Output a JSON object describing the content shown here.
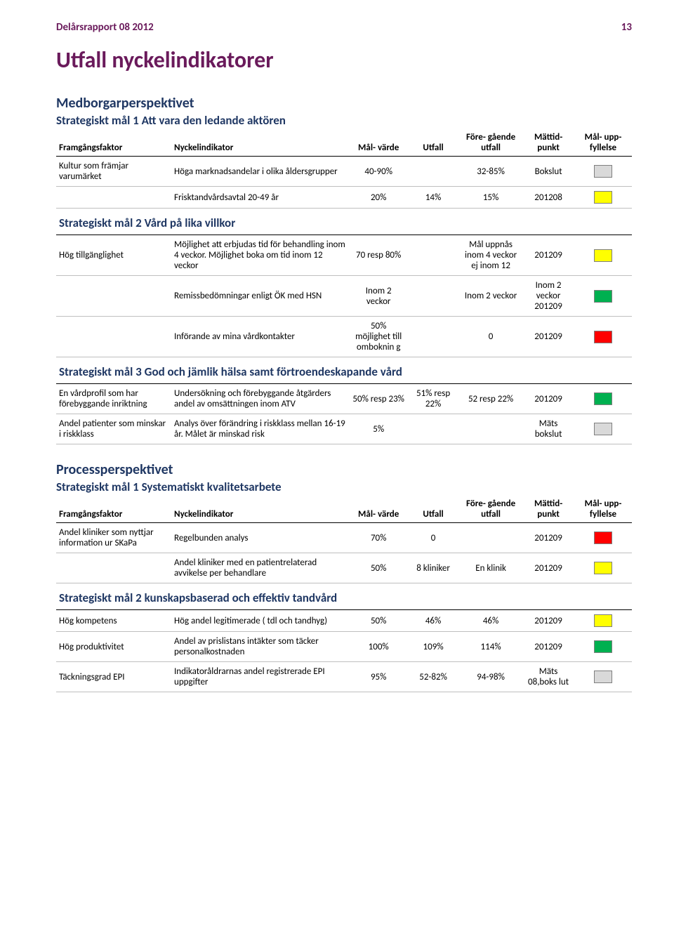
{
  "colors": {
    "gray": "#d9d9d9",
    "yellow": "#ffff00",
    "green": "#00b050",
    "red": "#ff0000"
  },
  "header": {
    "title_left": "Delårsrapport 08 2012",
    "page_number": "13",
    "doc_title": "Utfall nyckelindikatorer"
  },
  "columns": {
    "framgangsfaktor": "Framgångsfaktor",
    "nyckelindikator": "Nyckelindikator",
    "malvarde": "Mål-\nvärde",
    "utfall": "Utfall",
    "foregaende": "Före-\ngående\nutfall",
    "mattidpunkt": "Mättid-\npunkt",
    "maluppfyllelse": "Mål-\nupp-\nfyllelse"
  },
  "table1": {
    "section_title": "Medborgarperspektivet",
    "goal1_title": "Strategiskt mål 1 Att vara den ledande aktören",
    "rows1": [
      {
        "ff": "Kultur som främjar varumärket",
        "ind": "Höga marknadsandelar i olika åldersgrupper",
        "mv": "40-90%",
        "utf": "",
        "prev": "32-85%",
        "mt": "Bokslut",
        "status": "gray"
      },
      {
        "ff": "",
        "ind": "Frisktandvårdsavtal 20-49 år",
        "mv": "20%",
        "utf": "14%",
        "prev": "15%",
        "mt": "201208",
        "status": "yellow"
      }
    ],
    "goal2_title": "Strategiskt mål 2 Vård på lika villkor",
    "rows2": [
      {
        "ff": "Hög tillgänglighet",
        "ind": "Möjlighet att erbjudas tid för behandling inom 4 veckor. Möjlighet boka om tid inom 12 veckor",
        "mv": "70 resp 80%",
        "utf": "",
        "prev": "Mål uppnås inom 4 veckor  ej inom 12",
        "mt": "201209",
        "status": "yellow"
      },
      {
        "ff": "",
        "ind": "Remissbedömningar enligt ÖK med HSN",
        "mv": "Inom 2 veckor",
        "utf": "",
        "prev": "Inom 2 veckor",
        "mt": "Inom 2 veckor\n201209",
        "status": "green"
      },
      {
        "ff": "",
        "ind": "Införande av mina vårdkontakter",
        "mv": "50% möjlighet till omboknin g",
        "utf": "",
        "prev": "0",
        "mt": "201209",
        "status": "red"
      }
    ],
    "goal3_title": "Strategiskt mål 3 God och jämlik hälsa samt förtroendeskapande vård",
    "rows3": [
      {
        "ff": "En vårdprofil som har förebyggande inriktning",
        "ind": "Undersökning och förebyggande åtgärders  andel av omsättningen inom ATV",
        "mv": "50% resp 23%",
        "utf": "51% resp 22%",
        "prev": "52 resp 22%",
        "mt": "201209",
        "status": "green"
      },
      {
        "ff": "Andel patienter som minskar i riskklass",
        "ind": "Analys  över förändring i riskklass mellan 16-19 år. Målet är minskad risk",
        "mv": "5%",
        "utf": "",
        "prev": "",
        "mt": "Mäts bokslut",
        "status": "gray"
      }
    ]
  },
  "table2": {
    "section_title": "Processperspektivet",
    "goal1_title": "Strategiskt mål 1 Systematiskt kvalitetsarbete",
    "rows1": [
      {
        "ff": "Andel kliniker som nyttjar information ur SKaPa",
        "ind": "Regelbunden analys",
        "mv": "70%",
        "utf": "0",
        "prev": "",
        "mt": "201209",
        "status": "red"
      },
      {
        "ff": "",
        "ind": "Andel kliniker med en patientrelaterad avvikelse per behandlare",
        "mv": "50%",
        "utf": "8 kliniker",
        "prev": "En klinik",
        "mt": "201209",
        "status": "yellow"
      }
    ],
    "goal2_title": "Strategiskt mål 2 kunskapsbaserad och effektiv tandvård",
    "rows2": [
      {
        "ff": "Hög kompetens",
        "ind": "Hög andel legitimerade ( tdl och tandhyg)",
        "mv": "50%",
        "utf": "46%",
        "prev": "46%",
        "mt": "201209",
        "status": "yellow"
      },
      {
        "ff": "Hög produktivitet",
        "ind": "Andel av prislistans intäkter som täcker personalkostnaden",
        "mv": "100%",
        "utf": "109%",
        "prev": "114%",
        "mt": "201209",
        "status": "green"
      },
      {
        "ff": "Täckningsgrad EPI",
        "ind": "Indikatoråldrarnas  andel registrerade EPI uppgifter",
        "mv": "95%",
        "utf": "52-82%",
        "prev": "94-98%",
        "mt": "Mäts 08,boks lut",
        "status": "gray"
      }
    ]
  }
}
